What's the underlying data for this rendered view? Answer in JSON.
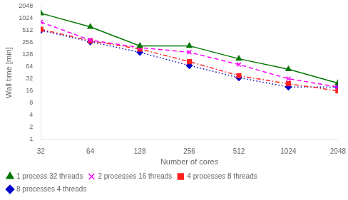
{
  "chart_data": {
    "type": "line",
    "x": [
      32,
      64,
      128,
      256,
      512,
      1024,
      2048
    ],
    "series": [
      {
        "name": "1 process 32 threads",
        "color": "#007700",
        "marker": "triangle",
        "line_style": "solid",
        "values": [
          1350,
          620,
          210,
          210,
          100,
          55,
          25
        ]
      },
      {
        "name": "2 processes 16 threads",
        "color": "#ff00ff",
        "marker": "x",
        "line_style": "dashed",
        "values": [
          820,
          290,
          190,
          145,
          72,
          32,
          20
        ]
      },
      {
        "name": "4 processes 8 threads",
        "color": "#ff2222",
        "marker": "square",
        "line_style": "dashdot",
        "values": [
          540,
          280,
          175,
          85,
          38,
          24,
          16
        ]
      },
      {
        "name": "8 processes 4 threads",
        "color": "#0000cc",
        "marker": "diamond",
        "line_style": "dotted",
        "values": [
          510,
          265,
          145,
          68,
          34,
          20,
          20
        ]
      }
    ],
    "xlabel": "Number of cores",
    "ylabel": "Wall time [min]",
    "xlim": [
      32,
      2048
    ],
    "ylim": [
      1,
      2048
    ],
    "xticks": [
      32,
      64,
      128,
      256,
      512,
      1024,
      2048
    ],
    "yticks": [
      1,
      2,
      4,
      8,
      16,
      32,
      64,
      128,
      256,
      512,
      1024,
      2048
    ],
    "log": true,
    "grid": false,
    "legend": "lower left"
  }
}
